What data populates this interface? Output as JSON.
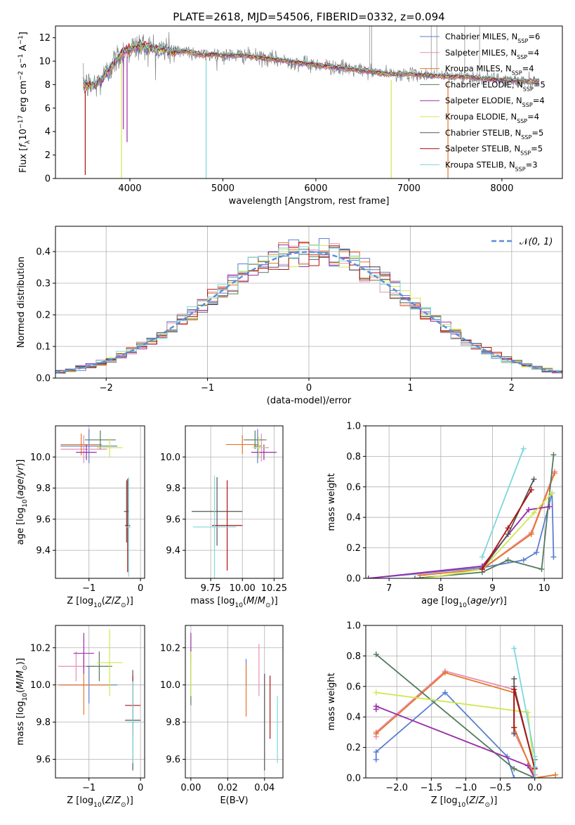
{
  "colors": {
    "chabrier_miles": "#5b7fd1",
    "salpeter_miles": "#e78fb4",
    "kroupa_miles": "#e8752a",
    "chabrier_elodie": "#547a5e",
    "salpeter_elodie": "#9a2da8",
    "kroupa_elodie": "#cfe84f",
    "chabrier_stelib": "#555555",
    "salpeter_stelib": "#b01212",
    "kroupa_stelib": "#7dd7dc",
    "normal": "#5b8ed6",
    "grid": "#b0b0b0"
  },
  "chart_data": [
    {
      "id": "spectrum",
      "type": "line",
      "title": "PLATE=2618, MJD=54506, FIBERID=0332, z=0.094",
      "xlabel": "wavelength [Angstrom, rest frame]",
      "ylabel": "Flux [f_λ10^-17 erg cm^-2 s^-1 A^-1]",
      "xlim": [
        3200,
        8650
      ],
      "ylim": [
        0,
        13
      ],
      "xticks": [
        4000,
        5000,
        6000,
        7000,
        8000
      ],
      "yticks": [
        0,
        2,
        4,
        6,
        8,
        10,
        12
      ],
      "legend_position": "top-right",
      "legend": [
        {
          "key": "chabrier_miles",
          "label": "Chabrier MILES, N_SSP=6"
        },
        {
          "key": "salpeter_miles",
          "label": "Salpeter MILES, N_SSP=4"
        },
        {
          "key": "kroupa_miles",
          "label": "Kroupa MILES, N_SSP=4"
        },
        {
          "key": "chabrier_elodie",
          "label": "Chabrier ELODIE, N_SSP=5"
        },
        {
          "key": "salpeter_elodie",
          "label": "Salpeter ELODIE, N_SSP=4"
        },
        {
          "key": "kroupa_elodie",
          "label": "Kroupa ELODIE, N_SSP=4"
        },
        {
          "key": "chabrier_stelib",
          "label": "Chabrier STELIB, N_SSP=5"
        },
        {
          "key": "salpeter_stelib",
          "label": "Salpeter STELIB, N_SSP=5"
        },
        {
          "key": "kroupa_stelib",
          "label": "Kroupa STELIB, N_SSP=3"
        }
      ],
      "envelope": {
        "x": [
          3500,
          3600,
          3700,
          3800,
          3900,
          4000,
          4100,
          4200,
          4300,
          4400,
          4500,
          4600,
          4700,
          4800,
          4900,
          5000,
          5200,
          5400,
          5600,
          5800,
          6000,
          6200,
          6400,
          6600,
          6800,
          7000,
          7200,
          7400,
          7600,
          7800,
          8000,
          8200,
          8400
        ],
        "y": [
          8.0,
          7.9,
          8.4,
          9.6,
          10.6,
          11.0,
          11.3,
          11.2,
          11.0,
          11.0,
          10.8,
          10.9,
          10.7,
          10.5,
          10.6,
          10.5,
          10.5,
          10.3,
          10.1,
          9.9,
          9.7,
          9.5,
          9.3,
          9.1,
          8.9,
          8.9,
          8.8,
          8.7,
          8.7,
          8.5,
          8.4,
          8.3,
          8.3
        ]
      },
      "dips": [
        {
          "x": 3520,
          "y": 0.3
        },
        {
          "x": 3910,
          "y": 0.0
        },
        {
          "x": 3930,
          "y": 4.2
        },
        {
          "x": 3970,
          "y": 3.1
        },
        {
          "x": 4820,
          "y": 0.0
        },
        {
          "x": 6810,
          "y": 0.0
        },
        {
          "x": 7420,
          "y": 0.0
        }
      ]
    },
    {
      "id": "residuals",
      "type": "bar",
      "xlabel": "(data-model)/error",
      "ylabel": "Normed distribution",
      "xlim": [
        -2.5,
        2.5
      ],
      "ylim": [
        0,
        0.48
      ],
      "xticks": [
        -2,
        -1,
        0,
        1,
        2
      ],
      "yticks": [
        0.0,
        0.1,
        0.2,
        0.3,
        0.4
      ],
      "bin_width": 0.1,
      "legend_label": "N(0,1)",
      "legend_position": "top-right",
      "normal": {
        "mu": 0,
        "sigma": 1
      }
    },
    {
      "id": "age_vs_Z",
      "type": "scatter",
      "xlabel": "Z [log10(Z/Z⊙)]",
      "ylabel": "age [log10(age/yr)]",
      "xlim": [
        -1.65,
        0.08
      ],
      "ylim": [
        9.22,
        10.2
      ],
      "xticks": [
        -1,
        0
      ],
      "yticks": [
        9.4,
        9.6,
        9.8,
        10.0
      ],
      "points": [
        {
          "key": "chabrier_miles",
          "x": -1.0,
          "y": 10.07,
          "xe": 0.55,
          "ye": 0.11
        },
        {
          "key": "salpeter_miles",
          "x": -1.1,
          "y": 10.05,
          "xe": 0.45,
          "ye": 0.09
        },
        {
          "key": "kroupa_miles",
          "x": -1.15,
          "y": 10.08,
          "xe": 0.4,
          "ye": 0.07
        },
        {
          "key": "chabrier_elodie",
          "x": -0.78,
          "y": 10.11,
          "xe": 0.3,
          "ye": 0.06
        },
        {
          "key": "salpeter_elodie",
          "x": -1.05,
          "y": 10.03,
          "xe": 0.2,
          "ye": 0.05
        },
        {
          "key": "kroupa_elodie",
          "x": -0.6,
          "y": 10.06,
          "xe": 0.25,
          "ye": 0.06
        },
        {
          "key": "chabrier_stelib",
          "x": -0.27,
          "y": 9.65,
          "xe": 0.05,
          "ye": 0.2
        },
        {
          "key": "salpeter_stelib",
          "x": -0.25,
          "y": 9.56,
          "xe": 0.05,
          "ye": 0.3
        },
        {
          "key": "kroupa_stelib",
          "x": -0.23,
          "y": 9.55,
          "xe": 0.04,
          "ye": 0.32
        }
      ]
    },
    {
      "id": "age_vs_mass",
      "type": "scatter",
      "xlabel": "mass [log10(M/M⊙)]",
      "ylabel": "",
      "xlim": [
        9.55,
        10.32
      ],
      "ylim": [
        9.22,
        10.2
      ],
      "xticks": [
        9.75,
        10.0,
        10.25
      ],
      "xticklabels": [
        "9.75",
        "10.00",
        "10.25"
      ],
      "yticks": [
        9.4,
        9.6,
        9.8,
        10.0
      ],
      "points": [
        {
          "key": "chabrier_miles",
          "x": 10.12,
          "y": 10.07,
          "xe": 0.03,
          "ye": 0.11
        },
        {
          "key": "salpeter_miles",
          "x": 10.15,
          "y": 10.06,
          "xe": 0.06,
          "ye": 0.09
        },
        {
          "key": "kroupa_miles",
          "x": 10.0,
          "y": 10.08,
          "xe": 0.13,
          "ye": 0.06
        },
        {
          "key": "chabrier_elodie",
          "x": 10.1,
          "y": 10.11,
          "xe": 0.09,
          "ye": 0.06
        },
        {
          "key": "salpeter_elodie",
          "x": 10.17,
          "y": 10.03,
          "xe": 0.1,
          "ye": 0.05
        },
        {
          "key": "kroupa_elodie",
          "x": 10.13,
          "y": 10.06,
          "xe": 0.05,
          "ye": 0.07
        },
        {
          "key": "chabrier_stelib",
          "x": 9.8,
          "y": 9.65,
          "xe": 0.2,
          "ye": 0.22
        },
        {
          "key": "salpeter_stelib",
          "x": 9.88,
          "y": 9.56,
          "xe": 0.12,
          "ye": 0.29
        },
        {
          "key": "kroupa_stelib",
          "x": 9.78,
          "y": 9.55,
          "xe": 0.17,
          "ye": 0.33
        }
      ]
    },
    {
      "id": "weight_vs_age",
      "type": "line",
      "xlabel": "age  [log10(age/yr)]",
      "ylabel": "mass weight",
      "xlim": [
        6.55,
        10.35
      ],
      "ylim": [
        0,
        1.0
      ],
      "xticks": [
        7,
        8,
        9,
        10
      ],
      "yticks": [
        0.0,
        0.2,
        0.4,
        0.6,
        0.8,
        1.0
      ],
      "series": [
        {
          "key": "chabrier_miles",
          "x": [
            6.6,
            8.8,
            9.6,
            9.85,
            10.15,
            10.18
          ],
          "y": [
            0.0,
            0.07,
            0.12,
            0.17,
            0.56,
            0.14
          ]
        },
        {
          "key": "salpeter_miles",
          "x": [
            7.6,
            8.8,
            9.75,
            10.2
          ],
          "y": [
            0.02,
            0.06,
            0.3,
            0.7
          ]
        },
        {
          "key": "kroupa_miles",
          "x": [
            7.6,
            8.8,
            9.75,
            10.2
          ],
          "y": [
            0.02,
            0.06,
            0.29,
            0.69
          ]
        },
        {
          "key": "chabrier_elodie",
          "x": [
            7.5,
            8.8,
            9.3,
            9.95,
            10.18
          ],
          "y": [
            0.0,
            0.04,
            0.12,
            0.06,
            0.81
          ]
        },
        {
          "key": "salpeter_elodie",
          "x": [
            6.6,
            8.8,
            9.7,
            10.1
          ],
          "y": [
            0.0,
            0.08,
            0.45,
            0.47
          ]
        },
        {
          "key": "kroupa_elodie",
          "x": [
            7.7,
            8.8,
            9.8,
            10.15
          ],
          "y": [
            0.0,
            0.06,
            0.43,
            0.56
          ]
        },
        {
          "key": "chabrier_stelib",
          "x": [
            8.8,
            9.3,
            9.8
          ],
          "y": [
            0.06,
            0.29,
            0.65
          ]
        },
        {
          "key": "salpeter_stelib",
          "x": [
            8.8,
            9.3,
            9.75
          ],
          "y": [
            0.06,
            0.33,
            0.58
          ]
        },
        {
          "key": "kroupa_stelib",
          "x": [
            8.8,
            9.6
          ],
          "y": [
            0.14,
            0.85
          ]
        }
      ]
    },
    {
      "id": "mass_vs_Z",
      "type": "scatter",
      "xlabel": "Z [log10(Z/Z⊙)]",
      "ylabel": "mass [log10(M/M⊙)]",
      "xlim": [
        -1.65,
        0.08
      ],
      "ylim": [
        9.5,
        10.32
      ],
      "xticks": [
        -1,
        0
      ],
      "yticks": [
        9.6,
        9.8,
        10.0,
        10.2
      ],
      "points": [
        {
          "key": "chabrier_miles",
          "x": -1.0,
          "y": 10.0,
          "xe": 0.55,
          "ye": 0.1
        },
        {
          "key": "salpeter_miles",
          "x": -1.25,
          "y": 10.1,
          "xe": 0.35,
          "ye": 0.08
        },
        {
          "key": "kroupa_miles",
          "x": -1.1,
          "y": 10.0,
          "xe": 0.5,
          "ye": 0.16
        },
        {
          "key": "chabrier_elodie",
          "x": -0.8,
          "y": 10.1,
          "xe": 0.25,
          "ye": 0.08
        },
        {
          "key": "salpeter_elodie",
          "x": -1.1,
          "y": 10.17,
          "xe": 0.2,
          "ye": 0.11
        },
        {
          "key": "kroupa_elodie",
          "x": -0.6,
          "y": 10.12,
          "xe": 0.25,
          "ye": 0.18
        },
        {
          "key": "chabrier_stelib",
          "x": -0.15,
          "y": 9.81,
          "xe": 0.15,
          "ye": 0.27
        },
        {
          "key": "salpeter_stelib",
          "x": -0.15,
          "y": 9.89,
          "xe": 0.15,
          "ye": 0.16
        },
        {
          "key": "kroupa_stelib",
          "x": -0.15,
          "y": 9.8,
          "xe": 0.12,
          "ye": 0.22
        }
      ]
    },
    {
      "id": "mass_vs_EBV",
      "type": "scatter",
      "xlabel": "E(B-V)",
      "ylabel": "",
      "xlim": [
        -0.003,
        0.05
      ],
      "ylim": [
        9.5,
        10.32
      ],
      "xticks": [
        0.0,
        0.02,
        0.04
      ],
      "xticklabels": [
        "0.00",
        "0.02",
        "0.04"
      ],
      "yticks": [
        9.6,
        9.8,
        10.0,
        10.2
      ],
      "points": [
        {
          "key": "chabrier_miles",
          "x": 0.03,
          "y": 10.07,
          "xe": 0,
          "ye": 0.07
        },
        {
          "key": "salpeter_miles",
          "x": 0.037,
          "y": 10.08,
          "xe": 0,
          "ye": 0.14
        },
        {
          "key": "kroupa_miles",
          "x": 0.03,
          "y": 9.97,
          "xe": 0,
          "ye": 0.14
        },
        {
          "key": "chabrier_elodie",
          "x": 0.0,
          "y": 10.04,
          "xe": 0,
          "ye": 0.15
        },
        {
          "key": "salpeter_elodie",
          "x": 0.0,
          "y": 10.2,
          "xe": 0,
          "ye": 0.08
        },
        {
          "key": "kroupa_elodie",
          "x": 0.0,
          "y": 10.06,
          "xe": 0,
          "ye": 0.12
        },
        {
          "key": "chabrier_stelib",
          "x": 0.04,
          "y": 9.8,
          "xe": 0,
          "ye": 0.26
        },
        {
          "key": "salpeter_stelib",
          "x": 0.043,
          "y": 9.88,
          "xe": 0,
          "ye": 0.17
        },
        {
          "key": "kroupa_stelib",
          "x": 0.047,
          "y": 9.76,
          "xe": 0,
          "ye": 0.18
        }
      ]
    },
    {
      "id": "weight_vs_Z",
      "type": "line",
      "xlabel": "Z [log10(Z/Z⊙)]",
      "ylabel": "mass weight",
      "xlim": [
        -2.45,
        0.4
      ],
      "ylim": [
        0,
        1.0
      ],
      "xticks": [
        -2.0,
        -1.5,
        -1.0,
        -0.5,
        0.0
      ],
      "xticklabels": [
        "−2.0",
        "−1.5",
        "−1.0",
        "−0.5",
        "0.0"
      ],
      "yticks": [
        0.0,
        0.2,
        0.4,
        0.6,
        0.8,
        1.0
      ],
      "series": [
        {
          "key": "chabrier_miles",
          "x": [
            -2.3,
            -2.3,
            -1.3,
            -0.4,
            -0.3,
            0.0,
            0.0
          ],
          "y": [
            0.12,
            0.17,
            0.56,
            0.14,
            0.0,
            0.0,
            0.07
          ]
        },
        {
          "key": "salpeter_miles",
          "x": [
            -2.3,
            -2.3,
            -1.3,
            -0.3,
            -0.3,
            0.0
          ],
          "y": [
            0.27,
            0.3,
            0.7,
            0.58,
            0.3,
            0.02
          ]
        },
        {
          "key": "kroupa_miles",
          "x": [
            -2.3,
            -1.3,
            -0.3,
            -0.3,
            0.0,
            0.3
          ],
          "y": [
            0.29,
            0.69,
            0.56,
            0.33,
            0.0,
            0.02
          ]
        },
        {
          "key": "chabrier_elodie",
          "x": [
            -2.3,
            -0.3,
            0.0,
            0.0
          ],
          "y": [
            0.81,
            0.06,
            0.0,
            0.12
          ]
        },
        {
          "key": "salpeter_elodie",
          "x": [
            -2.3,
            -2.3,
            -0.1,
            0.0
          ],
          "y": [
            0.45,
            0.47,
            0.08,
            0.0
          ]
        },
        {
          "key": "kroupa_elodie",
          "x": [
            -2.3,
            -0.1,
            0.0
          ],
          "y": [
            0.56,
            0.43,
            0.0
          ]
        },
        {
          "key": "chabrier_stelib",
          "x": [
            -0.3,
            -0.3,
            -0.3,
            0.0
          ],
          "y": [
            0.29,
            0.65,
            0.6,
            0.06
          ]
        },
        {
          "key": "salpeter_stelib",
          "x": [
            -0.3,
            -0.3,
            0.0
          ],
          "y": [
            0.33,
            0.58,
            0.06
          ]
        },
        {
          "key": "kroupa_stelib",
          "x": [
            -0.3,
            0.0,
            0.0
          ],
          "y": [
            0.85,
            0.14,
            0.0
          ]
        }
      ]
    }
  ]
}
